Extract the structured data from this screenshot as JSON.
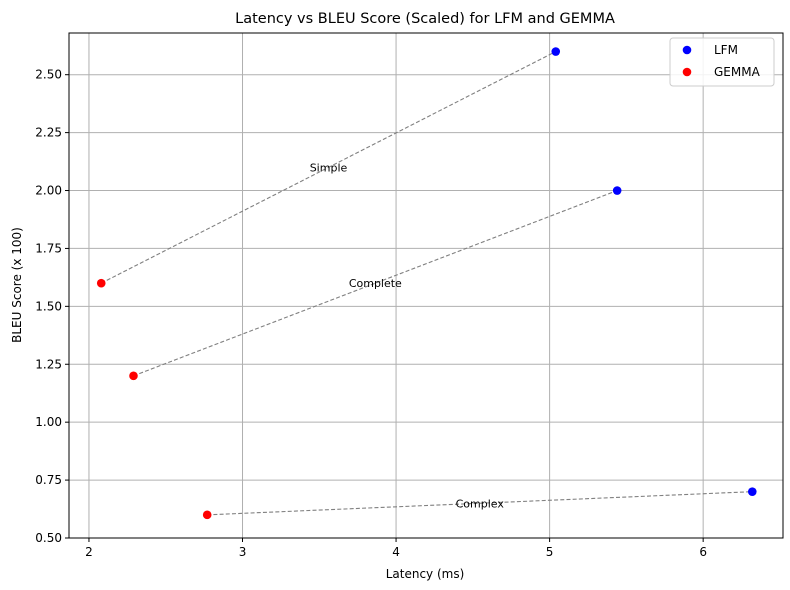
{
  "chart_data": {
    "type": "scatter",
    "title": "Latency vs BLEU Score (Scaled) for LFM and GEMMA",
    "xlabel": "Latency (ms)",
    "ylabel": "BLEU Score (x 100)",
    "xlim": [
      1.87,
      6.52
    ],
    "ylim": [
      0.5,
      2.68
    ],
    "xticks": [
      2,
      3,
      4,
      5,
      6
    ],
    "yticks": [
      0.5,
      0.75,
      1.0,
      1.25,
      1.5,
      1.75,
      2.0,
      2.25,
      2.5
    ],
    "ytick_labels": [
      "0.50",
      "0.75",
      "1.00",
      "1.25",
      "1.50",
      "1.75",
      "2.00",
      "2.25",
      "2.50"
    ],
    "grid": true,
    "legend_position": "top-right",
    "series": [
      {
        "name": "LFM",
        "color": "#0000ff",
        "x": [
          5.04,
          5.44,
          6.32
        ],
        "y": [
          2.6,
          2.0,
          0.7
        ]
      },
      {
        "name": "GEMMA",
        "color": "#ff0000",
        "x": [
          2.08,
          2.29,
          2.77
        ],
        "y": [
          1.6,
          1.2,
          0.6
        ]
      }
    ],
    "connectors": [
      {
        "label": "Simple",
        "from": [
          2.08,
          1.6
        ],
        "to": [
          5.04,
          2.6
        ]
      },
      {
        "label": "Complete",
        "from": [
          2.29,
          1.2
        ],
        "to": [
          5.44,
          2.0
        ]
      },
      {
        "label": "Complex",
        "from": [
          2.77,
          0.6
        ],
        "to": [
          6.32,
          0.7
        ]
      }
    ],
    "connector_color": "#808080"
  }
}
